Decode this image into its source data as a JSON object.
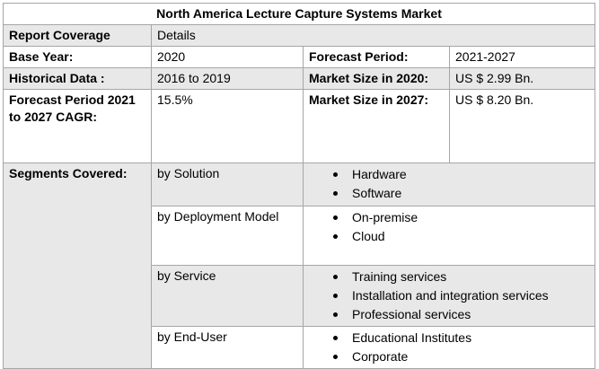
{
  "title": "North America Lecture Capture Systems Market",
  "header": {
    "label": "Report Coverage",
    "value": "Details"
  },
  "rows": {
    "base_year": {
      "label": "Base Year:",
      "value": "2020",
      "label2": "Forecast Period:",
      "value2": "2021-2027"
    },
    "historical": {
      "label": "Historical Data :",
      "value": "2016 to 2019",
      "label2": "Market Size in 2020:",
      "value2": "US $ 2.99 Bn."
    },
    "cagr": {
      "label": "Forecast Period 2021 to 2027 CAGR:",
      "value": "15.5%",
      "label2": "Market Size in 2027:",
      "value2": "US $ 8.20 Bn."
    }
  },
  "segments": {
    "label": "Segments Covered:",
    "groups": [
      {
        "name": "by Solution",
        "items": [
          "Hardware",
          "Software"
        ]
      },
      {
        "name": "by Deployment Model",
        "items": [
          "On-premise",
          "Cloud"
        ]
      },
      {
        "name": "by Service",
        "items": [
          "Training services",
          "Installation and integration services",
          "Professional services"
        ]
      },
      {
        "name": "by End-User",
        "items": [
          "Educational Institutes",
          "Corporate"
        ]
      }
    ]
  },
  "colors": {
    "shaded_row": "#e8e8e8",
    "border": "#a6a6a6"
  }
}
